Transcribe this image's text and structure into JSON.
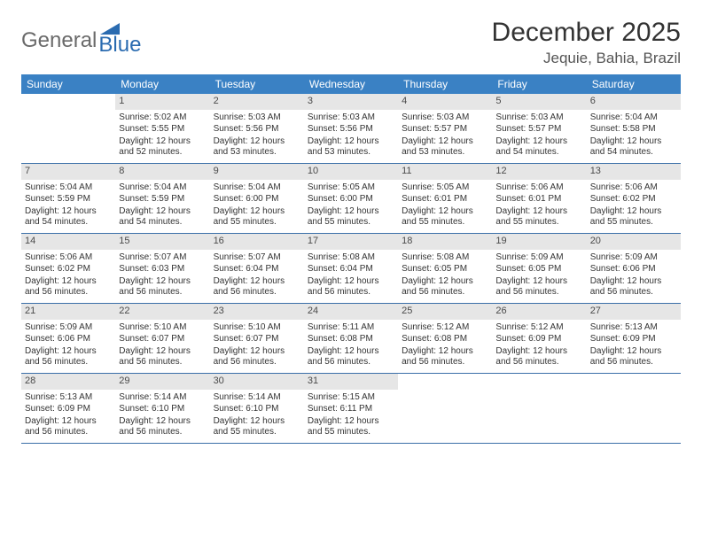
{
  "logo": {
    "word1": "General",
    "word2": "Blue"
  },
  "title": "December 2025",
  "location": "Jequie, Bahia, Brazil",
  "colors": {
    "header_bg": "#3a81c4",
    "header_text": "#ffffff",
    "daynum_bg": "#e6e6e6",
    "row_border": "#3a6fa8",
    "logo_gray": "#6a6a6a",
    "logo_blue": "#2a6bb0"
  },
  "weekdays": [
    "Sunday",
    "Monday",
    "Tuesday",
    "Wednesday",
    "Thursday",
    "Friday",
    "Saturday"
  ],
  "weeks": [
    [
      {
        "empty": true
      },
      {
        "n": "1",
        "sr": "Sunrise: 5:02 AM",
        "ss": "Sunset: 5:55 PM",
        "dl": "Daylight: 12 hours and 52 minutes."
      },
      {
        "n": "2",
        "sr": "Sunrise: 5:03 AM",
        "ss": "Sunset: 5:56 PM",
        "dl": "Daylight: 12 hours and 53 minutes."
      },
      {
        "n": "3",
        "sr": "Sunrise: 5:03 AM",
        "ss": "Sunset: 5:56 PM",
        "dl": "Daylight: 12 hours and 53 minutes."
      },
      {
        "n": "4",
        "sr": "Sunrise: 5:03 AM",
        "ss": "Sunset: 5:57 PM",
        "dl": "Daylight: 12 hours and 53 minutes."
      },
      {
        "n": "5",
        "sr": "Sunrise: 5:03 AM",
        "ss": "Sunset: 5:57 PM",
        "dl": "Daylight: 12 hours and 54 minutes."
      },
      {
        "n": "6",
        "sr": "Sunrise: 5:04 AM",
        "ss": "Sunset: 5:58 PM",
        "dl": "Daylight: 12 hours and 54 minutes."
      }
    ],
    [
      {
        "n": "7",
        "sr": "Sunrise: 5:04 AM",
        "ss": "Sunset: 5:59 PM",
        "dl": "Daylight: 12 hours and 54 minutes."
      },
      {
        "n": "8",
        "sr": "Sunrise: 5:04 AM",
        "ss": "Sunset: 5:59 PM",
        "dl": "Daylight: 12 hours and 54 minutes."
      },
      {
        "n": "9",
        "sr": "Sunrise: 5:04 AM",
        "ss": "Sunset: 6:00 PM",
        "dl": "Daylight: 12 hours and 55 minutes."
      },
      {
        "n": "10",
        "sr": "Sunrise: 5:05 AM",
        "ss": "Sunset: 6:00 PM",
        "dl": "Daylight: 12 hours and 55 minutes."
      },
      {
        "n": "11",
        "sr": "Sunrise: 5:05 AM",
        "ss": "Sunset: 6:01 PM",
        "dl": "Daylight: 12 hours and 55 minutes."
      },
      {
        "n": "12",
        "sr": "Sunrise: 5:06 AM",
        "ss": "Sunset: 6:01 PM",
        "dl": "Daylight: 12 hours and 55 minutes."
      },
      {
        "n": "13",
        "sr": "Sunrise: 5:06 AM",
        "ss": "Sunset: 6:02 PM",
        "dl": "Daylight: 12 hours and 55 minutes."
      }
    ],
    [
      {
        "n": "14",
        "sr": "Sunrise: 5:06 AM",
        "ss": "Sunset: 6:02 PM",
        "dl": "Daylight: 12 hours and 56 minutes."
      },
      {
        "n": "15",
        "sr": "Sunrise: 5:07 AM",
        "ss": "Sunset: 6:03 PM",
        "dl": "Daylight: 12 hours and 56 minutes."
      },
      {
        "n": "16",
        "sr": "Sunrise: 5:07 AM",
        "ss": "Sunset: 6:04 PM",
        "dl": "Daylight: 12 hours and 56 minutes."
      },
      {
        "n": "17",
        "sr": "Sunrise: 5:08 AM",
        "ss": "Sunset: 6:04 PM",
        "dl": "Daylight: 12 hours and 56 minutes."
      },
      {
        "n": "18",
        "sr": "Sunrise: 5:08 AM",
        "ss": "Sunset: 6:05 PM",
        "dl": "Daylight: 12 hours and 56 minutes."
      },
      {
        "n": "19",
        "sr": "Sunrise: 5:09 AM",
        "ss": "Sunset: 6:05 PM",
        "dl": "Daylight: 12 hours and 56 minutes."
      },
      {
        "n": "20",
        "sr": "Sunrise: 5:09 AM",
        "ss": "Sunset: 6:06 PM",
        "dl": "Daylight: 12 hours and 56 minutes."
      }
    ],
    [
      {
        "n": "21",
        "sr": "Sunrise: 5:09 AM",
        "ss": "Sunset: 6:06 PM",
        "dl": "Daylight: 12 hours and 56 minutes."
      },
      {
        "n": "22",
        "sr": "Sunrise: 5:10 AM",
        "ss": "Sunset: 6:07 PM",
        "dl": "Daylight: 12 hours and 56 minutes."
      },
      {
        "n": "23",
        "sr": "Sunrise: 5:10 AM",
        "ss": "Sunset: 6:07 PM",
        "dl": "Daylight: 12 hours and 56 minutes."
      },
      {
        "n": "24",
        "sr": "Sunrise: 5:11 AM",
        "ss": "Sunset: 6:08 PM",
        "dl": "Daylight: 12 hours and 56 minutes."
      },
      {
        "n": "25",
        "sr": "Sunrise: 5:12 AM",
        "ss": "Sunset: 6:08 PM",
        "dl": "Daylight: 12 hours and 56 minutes."
      },
      {
        "n": "26",
        "sr": "Sunrise: 5:12 AM",
        "ss": "Sunset: 6:09 PM",
        "dl": "Daylight: 12 hours and 56 minutes."
      },
      {
        "n": "27",
        "sr": "Sunrise: 5:13 AM",
        "ss": "Sunset: 6:09 PM",
        "dl": "Daylight: 12 hours and 56 minutes."
      }
    ],
    [
      {
        "n": "28",
        "sr": "Sunrise: 5:13 AM",
        "ss": "Sunset: 6:09 PM",
        "dl": "Daylight: 12 hours and 56 minutes."
      },
      {
        "n": "29",
        "sr": "Sunrise: 5:14 AM",
        "ss": "Sunset: 6:10 PM",
        "dl": "Daylight: 12 hours and 56 minutes."
      },
      {
        "n": "30",
        "sr": "Sunrise: 5:14 AM",
        "ss": "Sunset: 6:10 PM",
        "dl": "Daylight: 12 hours and 55 minutes."
      },
      {
        "n": "31",
        "sr": "Sunrise: 5:15 AM",
        "ss": "Sunset: 6:11 PM",
        "dl": "Daylight: 12 hours and 55 minutes."
      },
      {
        "empty": true
      },
      {
        "empty": true
      },
      {
        "empty": true
      }
    ]
  ]
}
